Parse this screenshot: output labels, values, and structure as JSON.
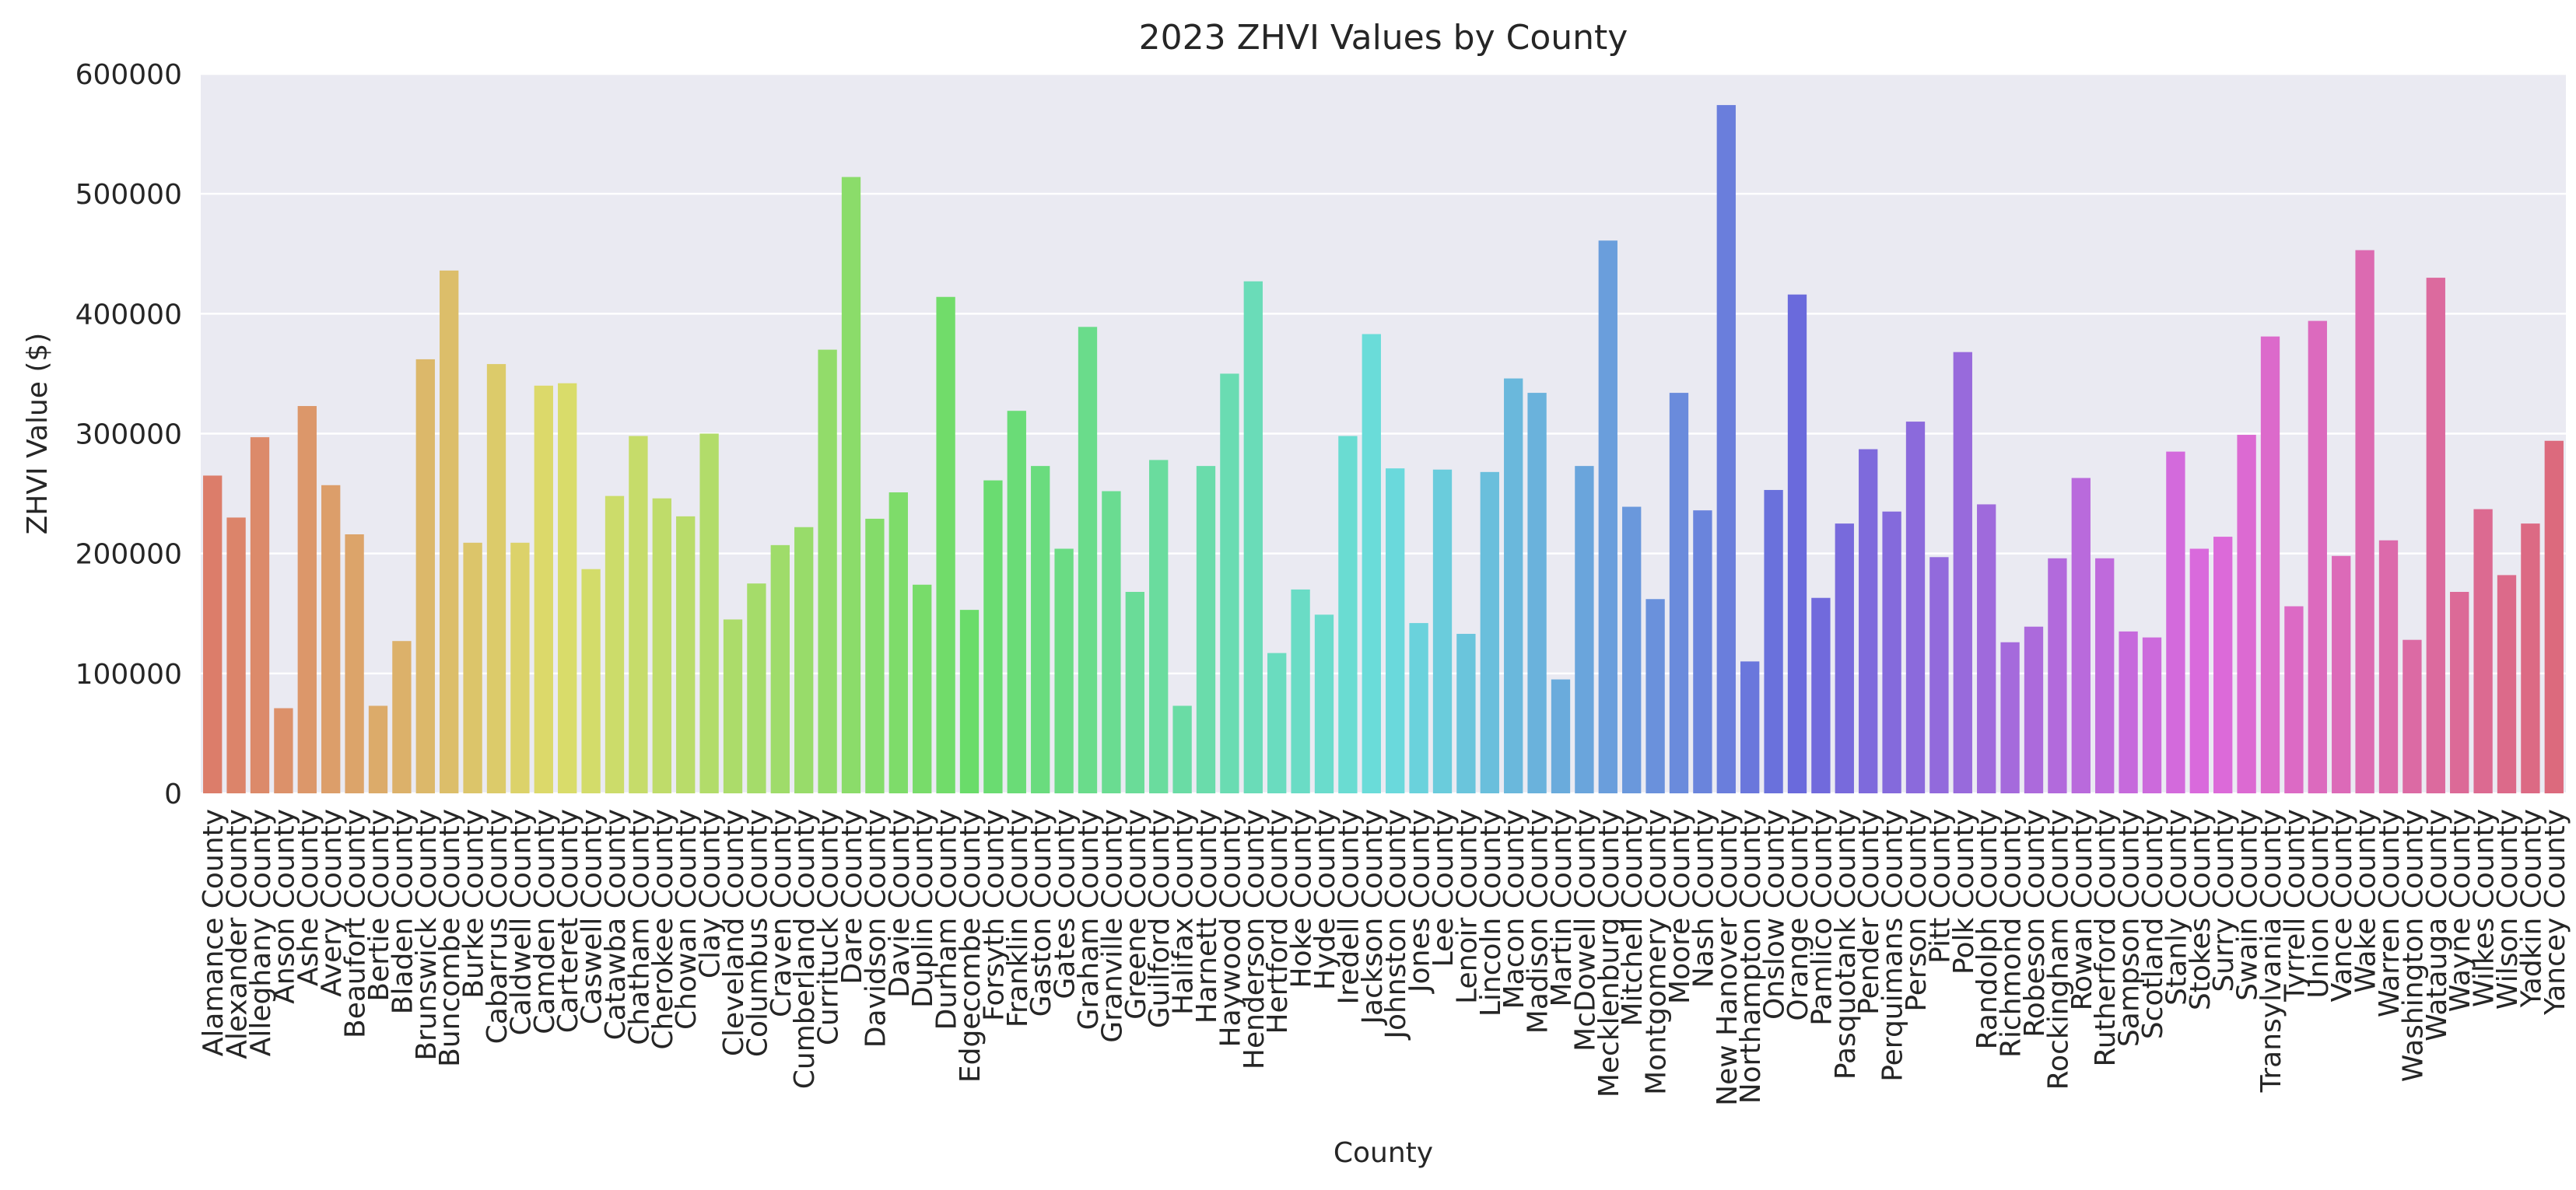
{
  "chart_data": {
    "type": "bar",
    "title": "2023 ZHVI Values by County",
    "xlabel": "County",
    "ylabel": "ZHVI Value ($)",
    "ylim": [
      0,
      600000
    ],
    "yticks": [
      0,
      100000,
      200000,
      300000,
      400000,
      500000,
      600000
    ],
    "grid": true,
    "legend": "none",
    "categories": [
      "Alamance County",
      "Alexander County",
      "Alleghany County",
      "Anson County",
      "Ashe County",
      "Avery County",
      "Beaufort County",
      "Bertie County",
      "Bladen County",
      "Brunswick County",
      "Buncombe County",
      "Burke County",
      "Cabarrus County",
      "Caldwell County",
      "Camden County",
      "Carteret County",
      "Caswell County",
      "Catawba County",
      "Chatham County",
      "Cherokee County",
      "Chowan County",
      "Clay County",
      "Cleveland County",
      "Columbus County",
      "Craven County",
      "Cumberland County",
      "Currituck County",
      "Dare County",
      "Davidson County",
      "Davie County",
      "Duplin County",
      "Durham County",
      "Edgecombe County",
      "Forsyth County",
      "Franklin County",
      "Gaston County",
      "Gates County",
      "Graham County",
      "Granville County",
      "Greene County",
      "Guilford County",
      "Halifax County",
      "Harnett County",
      "Haywood County",
      "Henderson County",
      "Hertford County",
      "Hoke County",
      "Hyde County",
      "Iredell County",
      "Jackson County",
      "Johnston County",
      "Jones County",
      "Lee County",
      "Lenoir County",
      "Lincoln County",
      "Macon County",
      "Madison County",
      "Martin County",
      "McDowell County",
      "Mecklenburg County",
      "Mitchell County",
      "Montgomery County",
      "Moore County",
      "Nash County",
      "New Hanover County",
      "Northampton County",
      "Onslow County",
      "Orange County",
      "Pamlico County",
      "Pasquotank County",
      "Pender County",
      "Perquimans County",
      "Person County",
      "Pitt County",
      "Polk County",
      "Randolph County",
      "Richmond County",
      "Robeson County",
      "Rockingham County",
      "Rowan County",
      "Rutherford County",
      "Sampson County",
      "Scotland County",
      "Stanly County",
      "Stokes County",
      "Surry County",
      "Swain County",
      "Transylvania County",
      "Tyrrell County",
      "Union County",
      "Vance County",
      "Wake County",
      "Warren County",
      "Washington County",
      "Watauga County",
      "Wayne County",
      "Wilkes County",
      "Wilson County",
      "Yadkin County",
      "Yancey County"
    ],
    "values": [
      265000,
      230000,
      297000,
      71000,
      323000,
      257000,
      216000,
      73000,
      127000,
      362000,
      436000,
      209000,
      358000,
      209000,
      340000,
      342000,
      187000,
      248000,
      298000,
      246000,
      231000,
      300000,
      145000,
      175000,
      207000,
      222000,
      370000,
      514000,
      229000,
      251000,
      174000,
      414000,
      153000,
      261000,
      319000,
      273000,
      204000,
      389000,
      252000,
      168000,
      278000,
      73000,
      273000,
      350000,
      427000,
      117000,
      170000,
      149000,
      298000,
      383000,
      271000,
      142000,
      270000,
      133000,
      268000,
      346000,
      334000,
      95000,
      273000,
      461000,
      239000,
      162000,
      334000,
      236000,
      574000,
      110000,
      253000,
      416000,
      163000,
      225000,
      287000,
      235000,
      310000,
      197000,
      368000,
      241000,
      126000,
      139000,
      196000,
      263000,
      196000,
      135000,
      130000,
      285000,
      204000,
      214000,
      299000,
      381000,
      156000,
      394000,
      198000,
      453000,
      211000,
      128000,
      430000,
      168000,
      237000,
      182000,
      225000,
      294000
    ]
  }
}
